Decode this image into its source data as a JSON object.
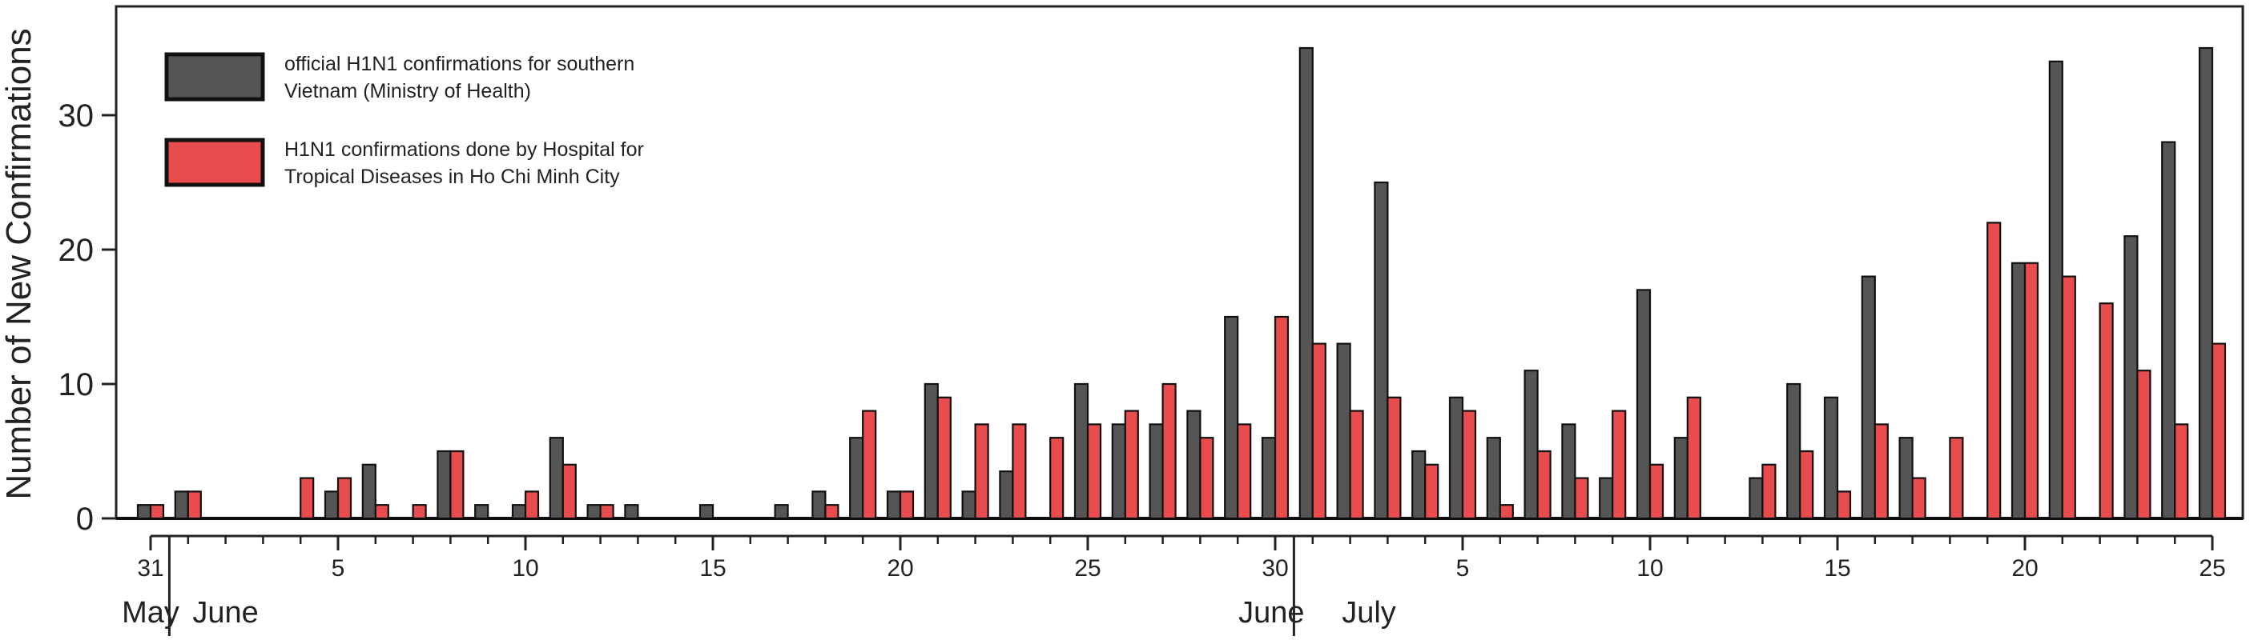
{
  "chart_data": {
    "type": "bar",
    "ylabel": "Number of New Confirmations",
    "xlabel": "",
    "ylim": [
      0,
      36
    ],
    "yticks": [
      0,
      10,
      20,
      30
    ],
    "grid": false,
    "legend_position": "top-left",
    "x_dates": [
      "May 31",
      "Jun 1",
      "Jun 2",
      "Jun 3",
      "Jun 4",
      "Jun 5",
      "Jun 6",
      "Jun 7",
      "Jun 8",
      "Jun 9",
      "Jun 10",
      "Jun 11",
      "Jun 12",
      "Jun 13",
      "Jun 14",
      "Jun 15",
      "Jun 16",
      "Jun 17",
      "Jun 18",
      "Jun 19",
      "Jun 20",
      "Jun 21",
      "Jun 22",
      "Jun 23",
      "Jun 24",
      "Jun 25",
      "Jun 26",
      "Jun 27",
      "Jun 28",
      "Jun 29",
      "Jun 30",
      "Jul 1",
      "Jul 2",
      "Jul 3",
      "Jul 4",
      "Jul 5",
      "Jul 6",
      "Jul 7",
      "Jul 8",
      "Jul 9",
      "Jul 10",
      "Jul 11",
      "Jul 12",
      "Jul 13",
      "Jul 14",
      "Jul 15",
      "Jul 16",
      "Jul 17",
      "Jul 18",
      "Jul 19",
      "Jul 20",
      "Jul 21",
      "Jul 22",
      "Jul 23",
      "Jul 24",
      "Jul 25"
    ],
    "x_tick_labels": [
      {
        "index": 0,
        "label": "31"
      },
      {
        "index": 5,
        "label": "5"
      },
      {
        "index": 10,
        "label": "10"
      },
      {
        "index": 15,
        "label": "15"
      },
      {
        "index": 20,
        "label": "20"
      },
      {
        "index": 25,
        "label": "25"
      },
      {
        "index": 30,
        "label": "30"
      },
      {
        "index": 35,
        "label": "5"
      },
      {
        "index": 40,
        "label": "10"
      },
      {
        "index": 45,
        "label": "15"
      },
      {
        "index": 50,
        "label": "20"
      },
      {
        "index": 55,
        "label": "25"
      }
    ],
    "month_labels": [
      {
        "label": "May",
        "under_index": 0
      },
      {
        "label": "June",
        "under_index": 2
      },
      {
        "label": "June",
        "under_index": 29.9
      },
      {
        "label": "July",
        "under_index": 32.5
      }
    ],
    "month_dividers": [
      0.5,
      30.5
    ],
    "series": [
      {
        "name": "official H1N1 confirmations for southern Vietnam (Ministry of Health)",
        "color": "#555555",
        "values": [
          1,
          2,
          0,
          0,
          0,
          2,
          4,
          0,
          5,
          1,
          1,
          6,
          1,
          1,
          0,
          1,
          0,
          1,
          2,
          6,
          2,
          10,
          2,
          3.5,
          0,
          10,
          7,
          7,
          8,
          15,
          6,
          35,
          13,
          25,
          5,
          9,
          6,
          11,
          7,
          3,
          17,
          6,
          0,
          3,
          10,
          9,
          18,
          6,
          0,
          0,
          19,
          34,
          0,
          21,
          28,
          35
        ]
      },
      {
        "name": "H1N1 confirmations done by Hospital for Tropical Diseases in Ho Chi Minh City",
        "color": "#e84c4c",
        "values": [
          1,
          2,
          0,
          0,
          3,
          3,
          1,
          1,
          5,
          0,
          2,
          4,
          1,
          0,
          0,
          0,
          0,
          0,
          1,
          8,
          2,
          9,
          7,
          7,
          6,
          7,
          8,
          10,
          6,
          7,
          15,
          13,
          8,
          9,
          4,
          8,
          1,
          5,
          3,
          8,
          4,
          9,
          0,
          4,
          5,
          2,
          7,
          3,
          6,
          22,
          19,
          18,
          16,
          11,
          7,
          13
        ]
      }
    ],
    "legend": [
      {
        "line1": "official H1N1 confirmations for southern",
        "line2": "Vietnam (Ministry of Health)"
      },
      {
        "line1": "H1N1 confirmations done by Hospital for",
        "line2": "Tropical Diseases in Ho Chi Minh City"
      }
    ]
  }
}
